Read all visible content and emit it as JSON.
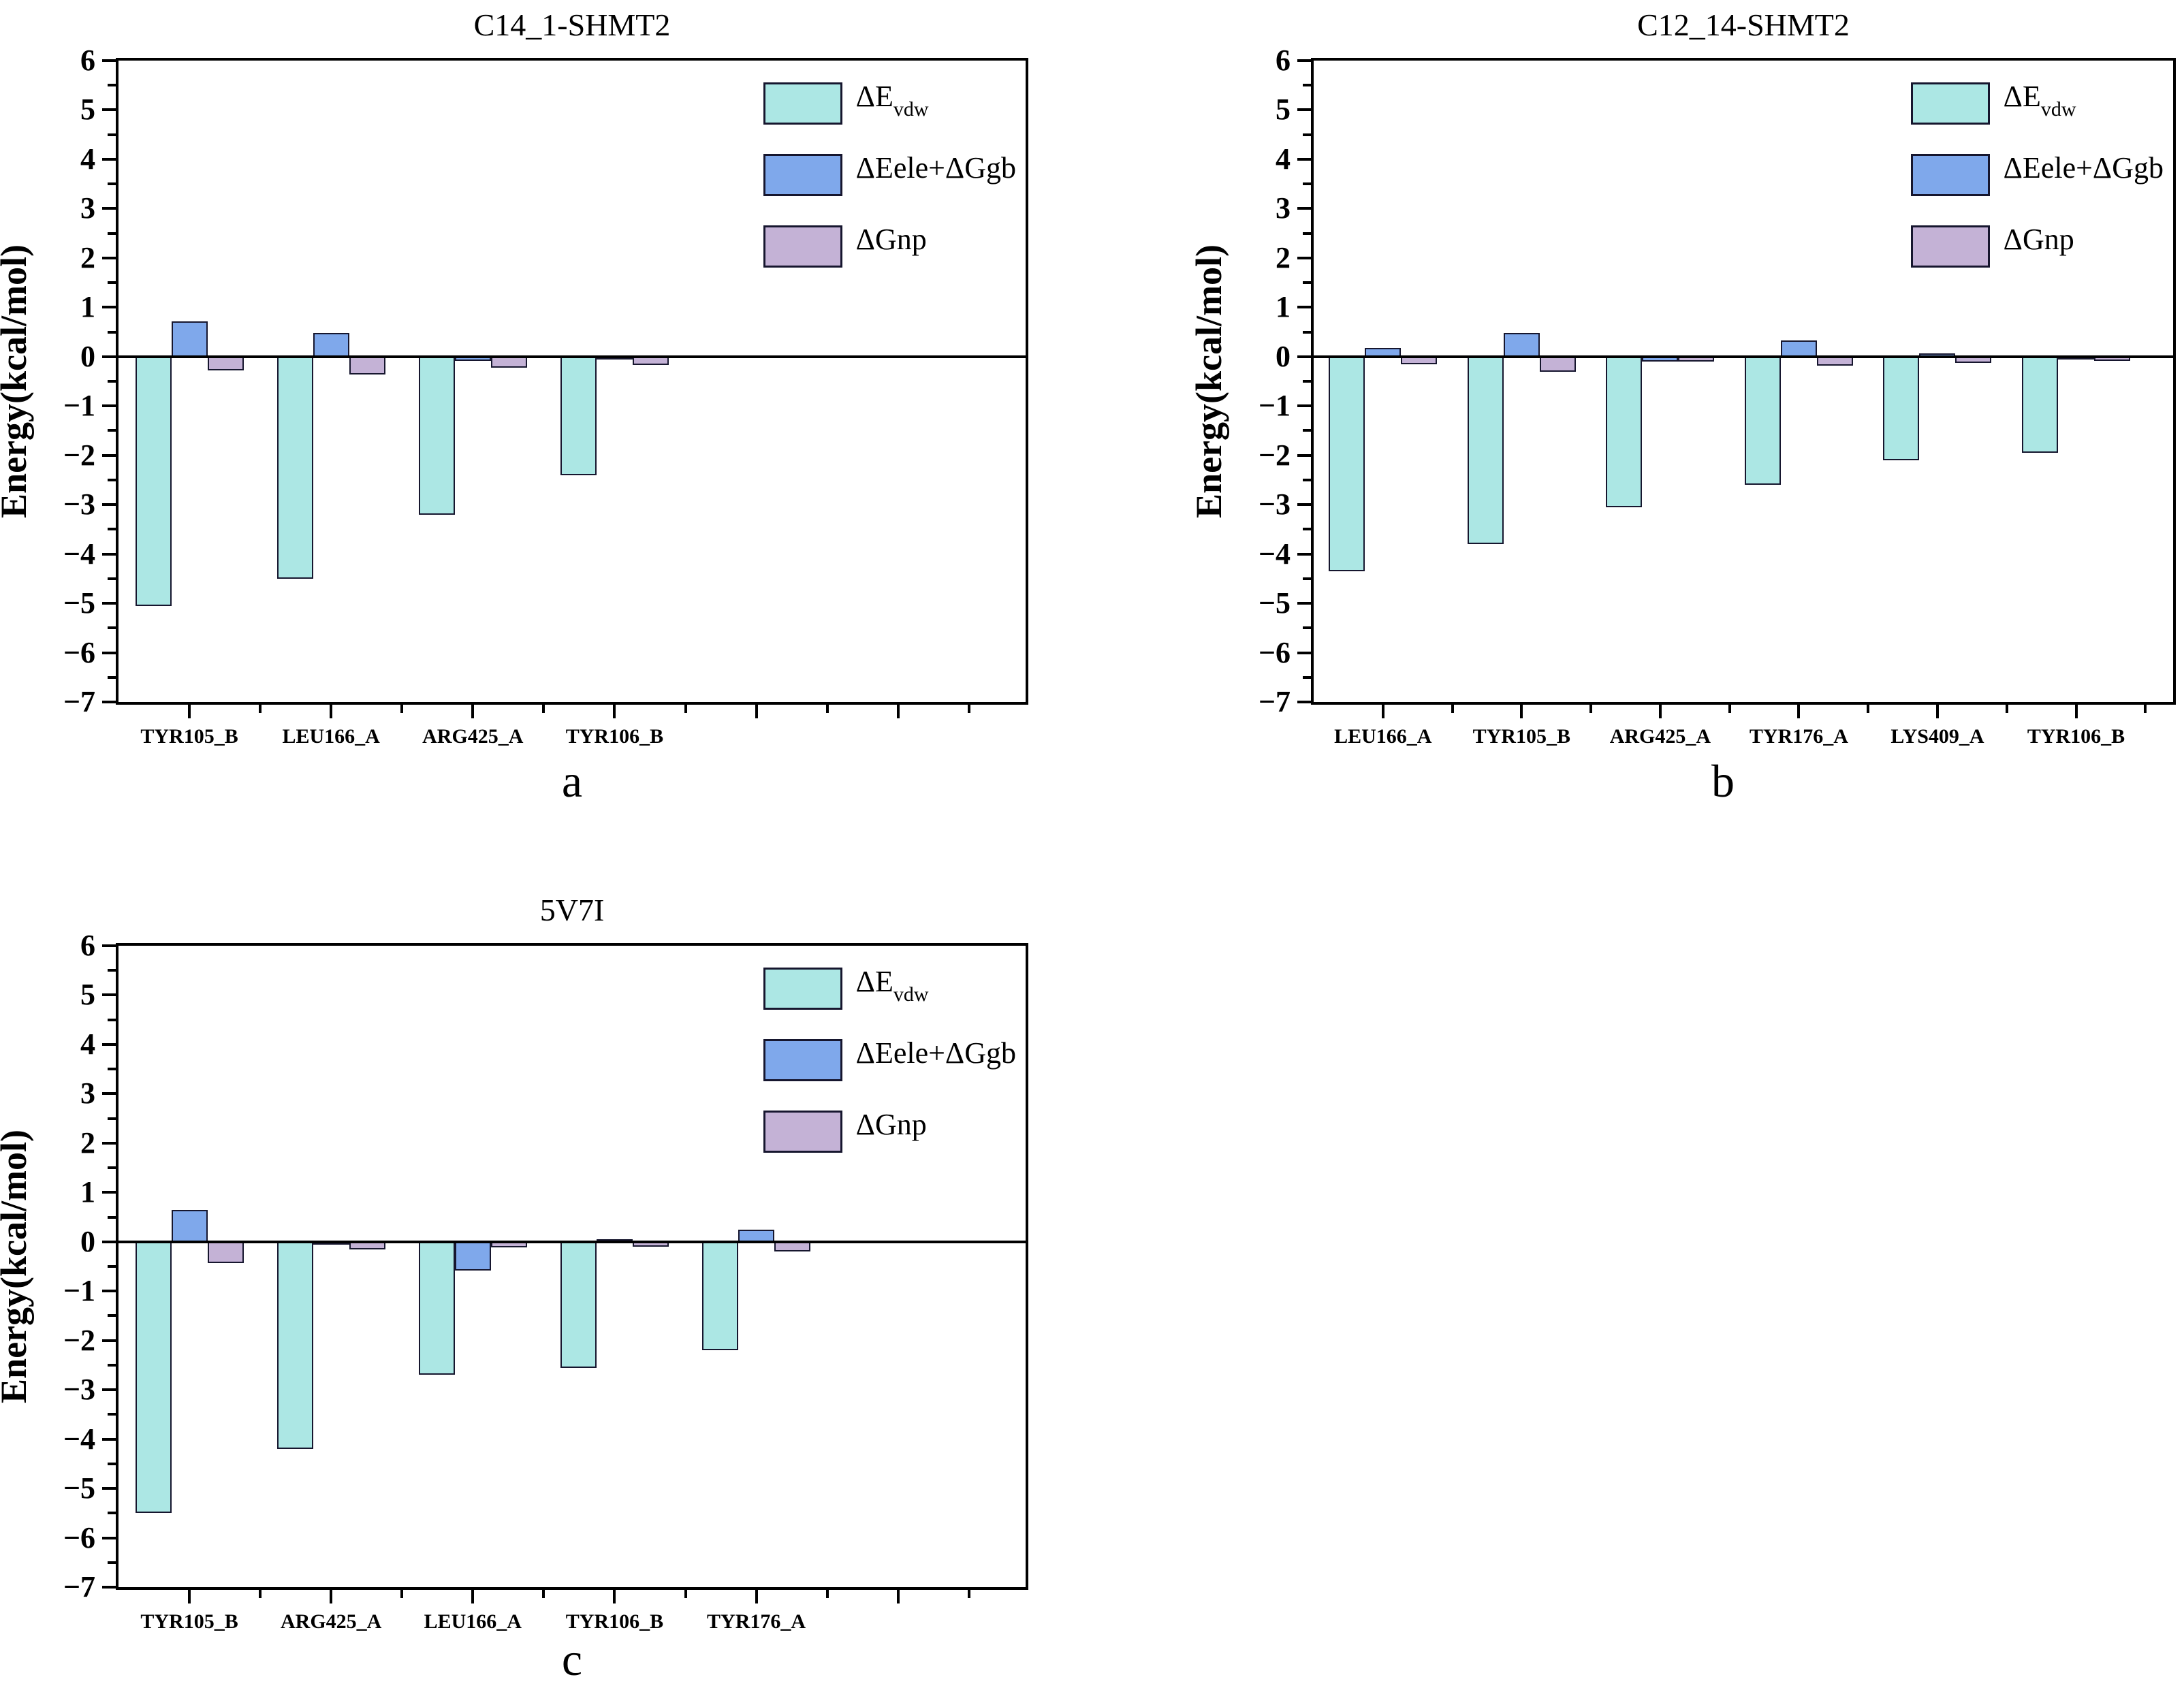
{
  "colors": {
    "vdw": "#ace7e4",
    "ele": "#7fa8eb",
    "np": "#c4b2d6",
    "outline": "#16162e",
    "axis": "#000000"
  },
  "legend": {
    "items": [
      {
        "key": "vdw",
        "main": "ΔE",
        "sub": "vdw"
      },
      {
        "key": "ele",
        "main": "ΔEele+ΔGgb",
        "sub": ""
      },
      {
        "key": "np",
        "main": "ΔGnp",
        "sub": ""
      }
    ]
  },
  "yticks": [
    "6",
    "5",
    "4",
    "3",
    "2",
    "1",
    "0",
    "−1",
    "−2",
    "−3",
    "−4",
    "−5",
    "−6",
    "−7"
  ],
  "chart_data": [
    {
      "id": "a",
      "type": "bar",
      "title": "C14_1-SHMT2",
      "caption": "a",
      "ylabel": "Energy(kcal/mol)",
      "ylim": [
        -7,
        6
      ],
      "grid": false,
      "legend_position": "top-right",
      "categories": [
        "TYR105_B",
        "LEU166_A",
        "ARG425_A",
        "TYR106_B"
      ],
      "series": [
        {
          "name": "ΔEvdw",
          "key": "vdw",
          "values": [
            -5.05,
            -4.5,
            -3.2,
            -2.4
          ]
        },
        {
          "name": "ΔEele+ΔGgb",
          "key": "ele",
          "values": [
            0.72,
            0.48,
            -0.08,
            -0.03
          ]
        },
        {
          "name": "ΔGnp",
          "key": "np",
          "values": [
            -0.28,
            -0.36,
            -0.22,
            -0.17
          ]
        }
      ]
    },
    {
      "id": "b",
      "type": "bar",
      "title": "C12_14-SHMT2",
      "caption": "b",
      "ylabel": "Energy(kcal/mol)",
      "ylim": [
        -7,
        6
      ],
      "grid": false,
      "legend_position": "top-right",
      "categories": [
        "LEU166_A",
        "TYR105_B",
        "ARG425_A",
        "TYR176_A",
        "LYS409_A",
        "TYR106_B"
      ],
      "series": [
        {
          "name": "ΔEvdw",
          "key": "vdw",
          "values": [
            -4.35,
            -3.8,
            -3.05,
            -2.6,
            -2.1,
            -1.95
          ]
        },
        {
          "name": "ΔEele+ΔGgb",
          "key": "ele",
          "values": [
            0.17,
            0.48,
            -0.1,
            0.33,
            0.07,
            -0.02
          ]
        },
        {
          "name": "ΔGnp",
          "key": "np",
          "values": [
            -0.15,
            -0.3,
            -0.1,
            -0.18,
            -0.13,
            -0.08
          ]
        }
      ]
    },
    {
      "id": "c",
      "type": "bar",
      "title": "5V7I",
      "caption": "c",
      "ylabel": "Energy(kcal/mol)",
      "ylim": [
        -7,
        6
      ],
      "grid": false,
      "legend_position": "top-right",
      "categories": [
        "TYR105_B",
        "ARG425_A",
        "LEU166_A",
        "TYR106_B",
        "TYR176_A"
      ],
      "series": [
        {
          "name": "ΔEvdw",
          "key": "vdw",
          "values": [
            -5.5,
            -4.2,
            -2.7,
            -2.55,
            -2.2
          ]
        },
        {
          "name": "ΔEele+ΔGgb",
          "key": "ele",
          "values": [
            0.65,
            -0.03,
            -0.58,
            0.05,
            0.25
          ]
        },
        {
          "name": "ΔGnp",
          "key": "np",
          "values": [
            -0.43,
            -0.15,
            -0.12,
            -0.1,
            -0.2
          ]
        }
      ]
    }
  ]
}
